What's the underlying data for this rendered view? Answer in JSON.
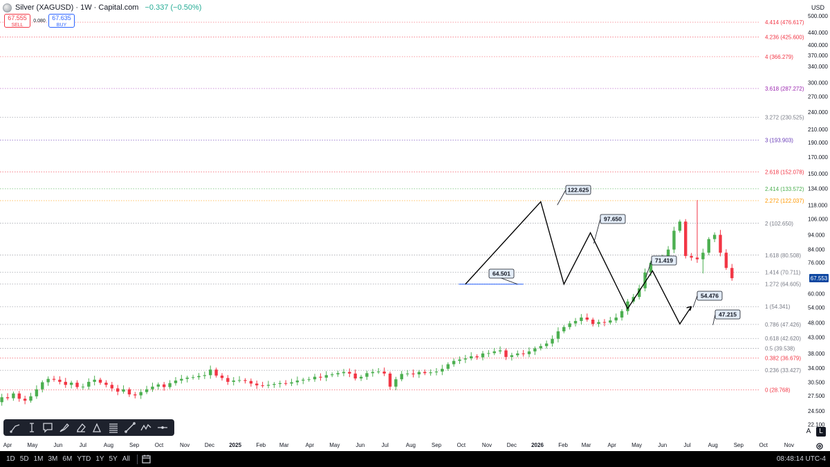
{
  "header": {
    "title": "Silver (XAGUSD) · 1W · Capital.com",
    "change": "−0.337 (−0.50%)",
    "sell_price": "67.555",
    "sell_label": "SELL",
    "spread": "0.080",
    "buy_price": "67.635",
    "buy_label": "BUY"
  },
  "currency": "USD",
  "scale_buttons": {
    "auto": "A",
    "log": "L"
  },
  "bottom_bar": {
    "ranges": [
      "1D",
      "5D",
      "1M",
      "3M",
      "6M",
      "YTD",
      "1Y",
      "5Y",
      "All"
    ],
    "clock": "08:48:14 UTC-4"
  },
  "toolbar": {
    "tools": [
      "trendline-tool",
      "cursor-text-tool",
      "note-tool",
      "brush-tool",
      "eraser-tool",
      "shape-tool",
      "fib-tool",
      "line-tool",
      "pattern-tool",
      "horizontal-line-tool"
    ]
  },
  "chart_data": {
    "type": "candlestick",
    "symbol": "Silver (XAGUSD)",
    "interval": "1W",
    "scale": "log",
    "last_price": "67.553",
    "colors": {
      "up": "#4caf50",
      "down": "#f23645",
      "last_price_bg": "#0d47a1"
    },
    "y_ticks": [
      "500.000",
      "440.000",
      "400.000",
      "370.000",
      "340.000",
      "300.000",
      "270.000",
      "240.000",
      "210.000",
      "190.000",
      "170.000",
      "150.000",
      "134.000",
      "118.000",
      "106.000",
      "94.000",
      "84.000",
      "76.000",
      "60.000",
      "54.000",
      "48.000",
      "43.000",
      "38.000",
      "34.000",
      "30.500",
      "27.500",
      "24.500",
      "22.100"
    ],
    "x_ticks": [
      "Apr",
      "May",
      "Jun",
      "Jul",
      "Aug",
      "Sep",
      "Oct",
      "Nov",
      "Dec",
      "2025",
      "Feb",
      "Mar",
      "Apr",
      "May",
      "Jun",
      "Jul",
      "Aug",
      "Sep",
      "Oct",
      "Nov",
      "Dec",
      "2026",
      "Feb",
      "Mar",
      "Apr",
      "May",
      "Jun",
      "Jul",
      "Aug",
      "Sep",
      "Oct",
      "Nov"
    ],
    "fib_levels": [
      {
        "label": "4.414 (476.617)",
        "value": 476.617,
        "color": "#f23645"
      },
      {
        "label": "4.236 (425.600)",
        "value": 425.6,
        "color": "#f23645"
      },
      {
        "label": "4 (366.279)",
        "value": 366.279,
        "color": "#f23645"
      },
      {
        "label": "3.618 (287.272)",
        "value": 287.272,
        "color": "#9c27b0"
      },
      {
        "label": "3.272 (230.525)",
        "value": 230.525,
        "color": "#787b86"
      },
      {
        "label": "3 (193.903)",
        "value": 193.903,
        "color": "#673ab7"
      },
      {
        "label": "2.618 (152.078)",
        "value": 152.078,
        "color": "#f23645"
      },
      {
        "label": "2.414 (133.572)",
        "value": 133.572,
        "color": "#4caf50"
      },
      {
        "label": "2.272 (122.037)",
        "value": 122.037,
        "color": "#ff9800"
      },
      {
        "label": "2 (102.650)",
        "value": 102.65,
        "color": "#787b86"
      },
      {
        "label": "1.618 (80.508)",
        "value": 80.508,
        "color": "#787b86"
      },
      {
        "label": "1.414 (70.711)",
        "value": 70.711,
        "color": "#787b86"
      },
      {
        "label": "1.272 (64.605)",
        "value": 64.605,
        "color": "#787b86"
      },
      {
        "label": "1 (54.341)",
        "value": 54.341,
        "color": "#787b86"
      },
      {
        "label": "0.786 (47.426)",
        "value": 47.426,
        "color": "#787b86"
      },
      {
        "label": "0.618 (42.620)",
        "value": 42.62,
        "color": "#787b86"
      },
      {
        "label": "0.5 (39.538)",
        "value": 39.538,
        "color": "#787b86"
      },
      {
        "label": "0.382 (36.679)",
        "value": 36.679,
        "color": "#f23645"
      },
      {
        "label": "0.236 (33.427)",
        "value": 33.427,
        "color": "#787b86"
      },
      {
        "label": "0 (28.768)",
        "value": 28.768,
        "color": "#f23645"
      }
    ],
    "callouts": [
      "122.625",
      "97.650",
      "64.501",
      "71.419",
      "54.476",
      "47.215"
    ],
    "projection_path": [
      {
        "date": "2025-10-06",
        "price": 64.5
      },
      {
        "date": "2026-01-05",
        "price": 121
      },
      {
        "date": "2026-02-02",
        "price": 64.5
      },
      {
        "date": "2026-03-06",
        "price": 95.5
      },
      {
        "date": "2026-04-20",
        "price": 53.5
      },
      {
        "date": "2026-05-20",
        "price": 71.4
      },
      {
        "date": "2026-06-22",
        "price": 47.6
      },
      {
        "date": "2026-07-06",
        "price": 54.4
      }
    ]
  }
}
